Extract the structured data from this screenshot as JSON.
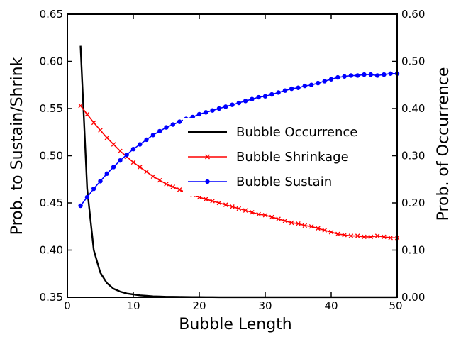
{
  "chart_data": {
    "type": "line",
    "title": "",
    "xlabel": "Bubble Length",
    "ylabel_left": "Prob. to Sustain/Shrink",
    "ylabel_right": "Prob. of Occurrence",
    "xlim": [
      0,
      50
    ],
    "ylim_left": [
      0.35,
      0.65
    ],
    "ylim_right": [
      0.0,
      0.6
    ],
    "xticks": [
      "0",
      "10",
      "20",
      "30",
      "40",
      "50"
    ],
    "yticks_left": [
      "0.35",
      "0.40",
      "0.45",
      "0.50",
      "0.55",
      "0.60",
      "0.65"
    ],
    "yticks_right": [
      "0.00",
      "0.10",
      "0.20",
      "0.30",
      "0.40",
      "0.50",
      "0.60"
    ],
    "grid": false,
    "legend_position": "center-right",
    "series": [
      {
        "name": "Bubble Occurrence",
        "axis": "right",
        "color": "#000000",
        "marker": "none",
        "x": [
          2,
          3,
          4,
          5,
          6,
          7,
          8,
          9,
          10,
          11,
          12,
          13,
          14,
          15,
          16,
          17,
          18,
          19,
          20,
          21,
          22,
          23,
          24,
          25,
          26,
          27,
          28,
          29,
          30,
          31,
          32,
          33,
          34,
          35,
          36,
          37,
          38,
          39,
          40,
          41,
          42,
          43,
          44,
          45,
          46,
          47,
          48,
          49,
          50
        ],
        "values": [
          0.533,
          0.23,
          0.1,
          0.052,
          0.03,
          0.018,
          0.012,
          0.008,
          0.006,
          0.004,
          0.003,
          0.002,
          0.0015,
          0.001,
          0.001,
          0.0008,
          0.0006,
          0.0005,
          0.0004,
          0.0003,
          0.0003,
          0.0002,
          0.0002,
          0.0002,
          0.0001,
          0.0001,
          0.0001,
          0.0001,
          0.0001,
          0.0001,
          0.0001,
          0.0001,
          0.0001,
          0.0001,
          0.0001,
          0.0001,
          0.0001,
          0.0001,
          0.0001,
          0.0001,
          0.0001,
          0.0001,
          0.0001,
          0.0001,
          0.0001,
          0.0001,
          0.0001,
          0.0001,
          0.0001
        ]
      },
      {
        "name": "Bubble Shrinkage",
        "axis": "left",
        "color": "#ff0000",
        "marker": "x",
        "x": [
          2,
          3,
          4,
          5,
          6,
          7,
          8,
          9,
          10,
          11,
          12,
          13,
          14,
          15,
          16,
          17,
          18,
          19,
          20,
          21,
          22,
          23,
          24,
          25,
          26,
          27,
          28,
          29,
          30,
          31,
          32,
          33,
          34,
          35,
          36,
          37,
          38,
          39,
          40,
          41,
          42,
          43,
          44,
          45,
          46,
          47,
          48,
          49,
          50
        ],
        "values": [
          0.553,
          0.544,
          0.535,
          0.527,
          0.519,
          0.512,
          0.505,
          0.499,
          0.493,
          0.488,
          0.483,
          0.478,
          0.474,
          0.47,
          0.467,
          0.464,
          0.461,
          0.459,
          0.456,
          0.454,
          0.452,
          0.45,
          0.448,
          0.446,
          0.444,
          0.442,
          0.44,
          0.438,
          0.437,
          0.435,
          0.433,
          0.431,
          0.429,
          0.428,
          0.426,
          0.425,
          0.423,
          0.421,
          0.419,
          0.417,
          0.416,
          0.415,
          0.415,
          0.414,
          0.414,
          0.415,
          0.414,
          0.413,
          0.413
        ]
      },
      {
        "name": "Bubble Sustain",
        "axis": "left",
        "color": "#0000ff",
        "marker": "o",
        "x": [
          2,
          3,
          4,
          5,
          6,
          7,
          8,
          9,
          10,
          11,
          12,
          13,
          14,
          15,
          16,
          17,
          18,
          19,
          20,
          21,
          22,
          23,
          24,
          25,
          26,
          27,
          28,
          29,
          30,
          31,
          32,
          33,
          34,
          35,
          36,
          37,
          38,
          39,
          40,
          41,
          42,
          43,
          44,
          45,
          46,
          47,
          48,
          49,
          50
        ],
        "values": [
          0.447,
          0.456,
          0.465,
          0.473,
          0.481,
          0.488,
          0.495,
          0.501,
          0.507,
          0.512,
          0.517,
          0.522,
          0.526,
          0.53,
          0.533,
          0.536,
          0.539,
          0.541,
          0.544,
          0.546,
          0.548,
          0.55,
          0.552,
          0.554,
          0.556,
          0.558,
          0.56,
          0.562,
          0.563,
          0.565,
          0.567,
          0.569,
          0.571,
          0.572,
          0.574,
          0.575,
          0.577,
          0.579,
          0.581,
          0.583,
          0.584,
          0.585,
          0.585,
          0.586,
          0.586,
          0.585,
          0.586,
          0.587,
          0.587
        ]
      }
    ]
  }
}
